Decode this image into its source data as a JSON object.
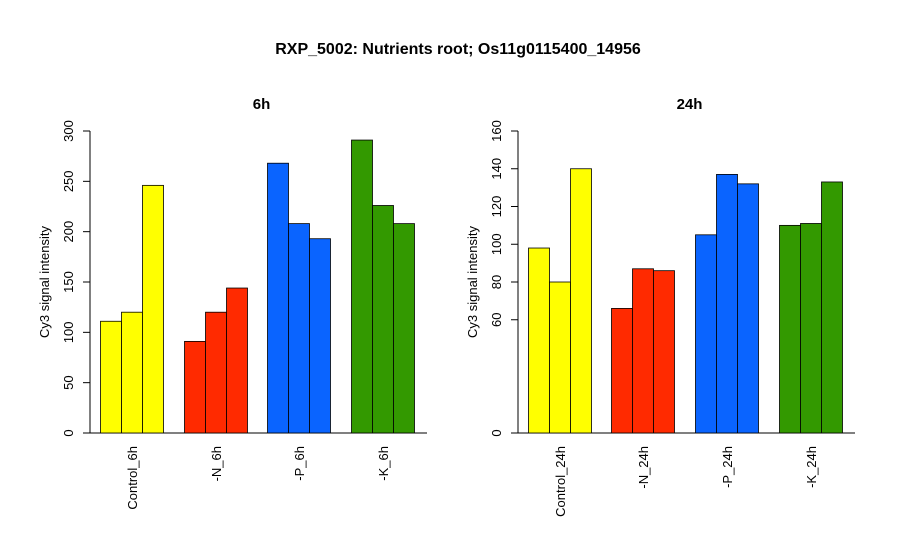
{
  "title": "RXP_5002: Nutrients root; Os11g0115400_14956",
  "chart_data": [
    {
      "type": "bar",
      "title": "6h",
      "ylabel": "Cy3 signal intensity",
      "ylim": [
        0,
        300
      ],
      "yticks": [
        0,
        50,
        100,
        150,
        200,
        250,
        300
      ],
      "categories": [
        "Control_6h",
        "-N_6h",
        "-P_6h",
        "-K_6h"
      ],
      "groups": [
        {
          "category": "Control_6h",
          "color": "#ffff00",
          "values": [
            111,
            120,
            246
          ]
        },
        {
          "category": "-N_6h",
          "color": "#ff2a00",
          "values": [
            91,
            120,
            144
          ]
        },
        {
          "category": "-P_6h",
          "color": "#0a64ff",
          "values": [
            268,
            208,
            193
          ]
        },
        {
          "category": "-K_6h",
          "color": "#339900",
          "values": [
            291,
            226,
            208
          ]
        }
      ]
    },
    {
      "type": "bar",
      "title": "24h",
      "ylabel": "Cy3 signal intensity",
      "ylim": [
        0,
        160
      ],
      "yticks": [
        0,
        60,
        80,
        100,
        120,
        140,
        160
      ],
      "categories": [
        "Control_24h",
        "-N_24h",
        "-P_24h",
        "-K_24h"
      ],
      "groups": [
        {
          "category": "Control_24h",
          "color": "#ffff00",
          "values": [
            98,
            80,
            140
          ]
        },
        {
          "category": "-N_24h",
          "color": "#ff2a00",
          "values": [
            66,
            87,
            86
          ]
        },
        {
          "category": "-P_24h",
          "color": "#0a64ff",
          "values": [
            105,
            137,
            132
          ]
        },
        {
          "category": "-K_24h",
          "color": "#339900",
          "values": [
            110,
            111,
            133
          ]
        }
      ]
    }
  ]
}
